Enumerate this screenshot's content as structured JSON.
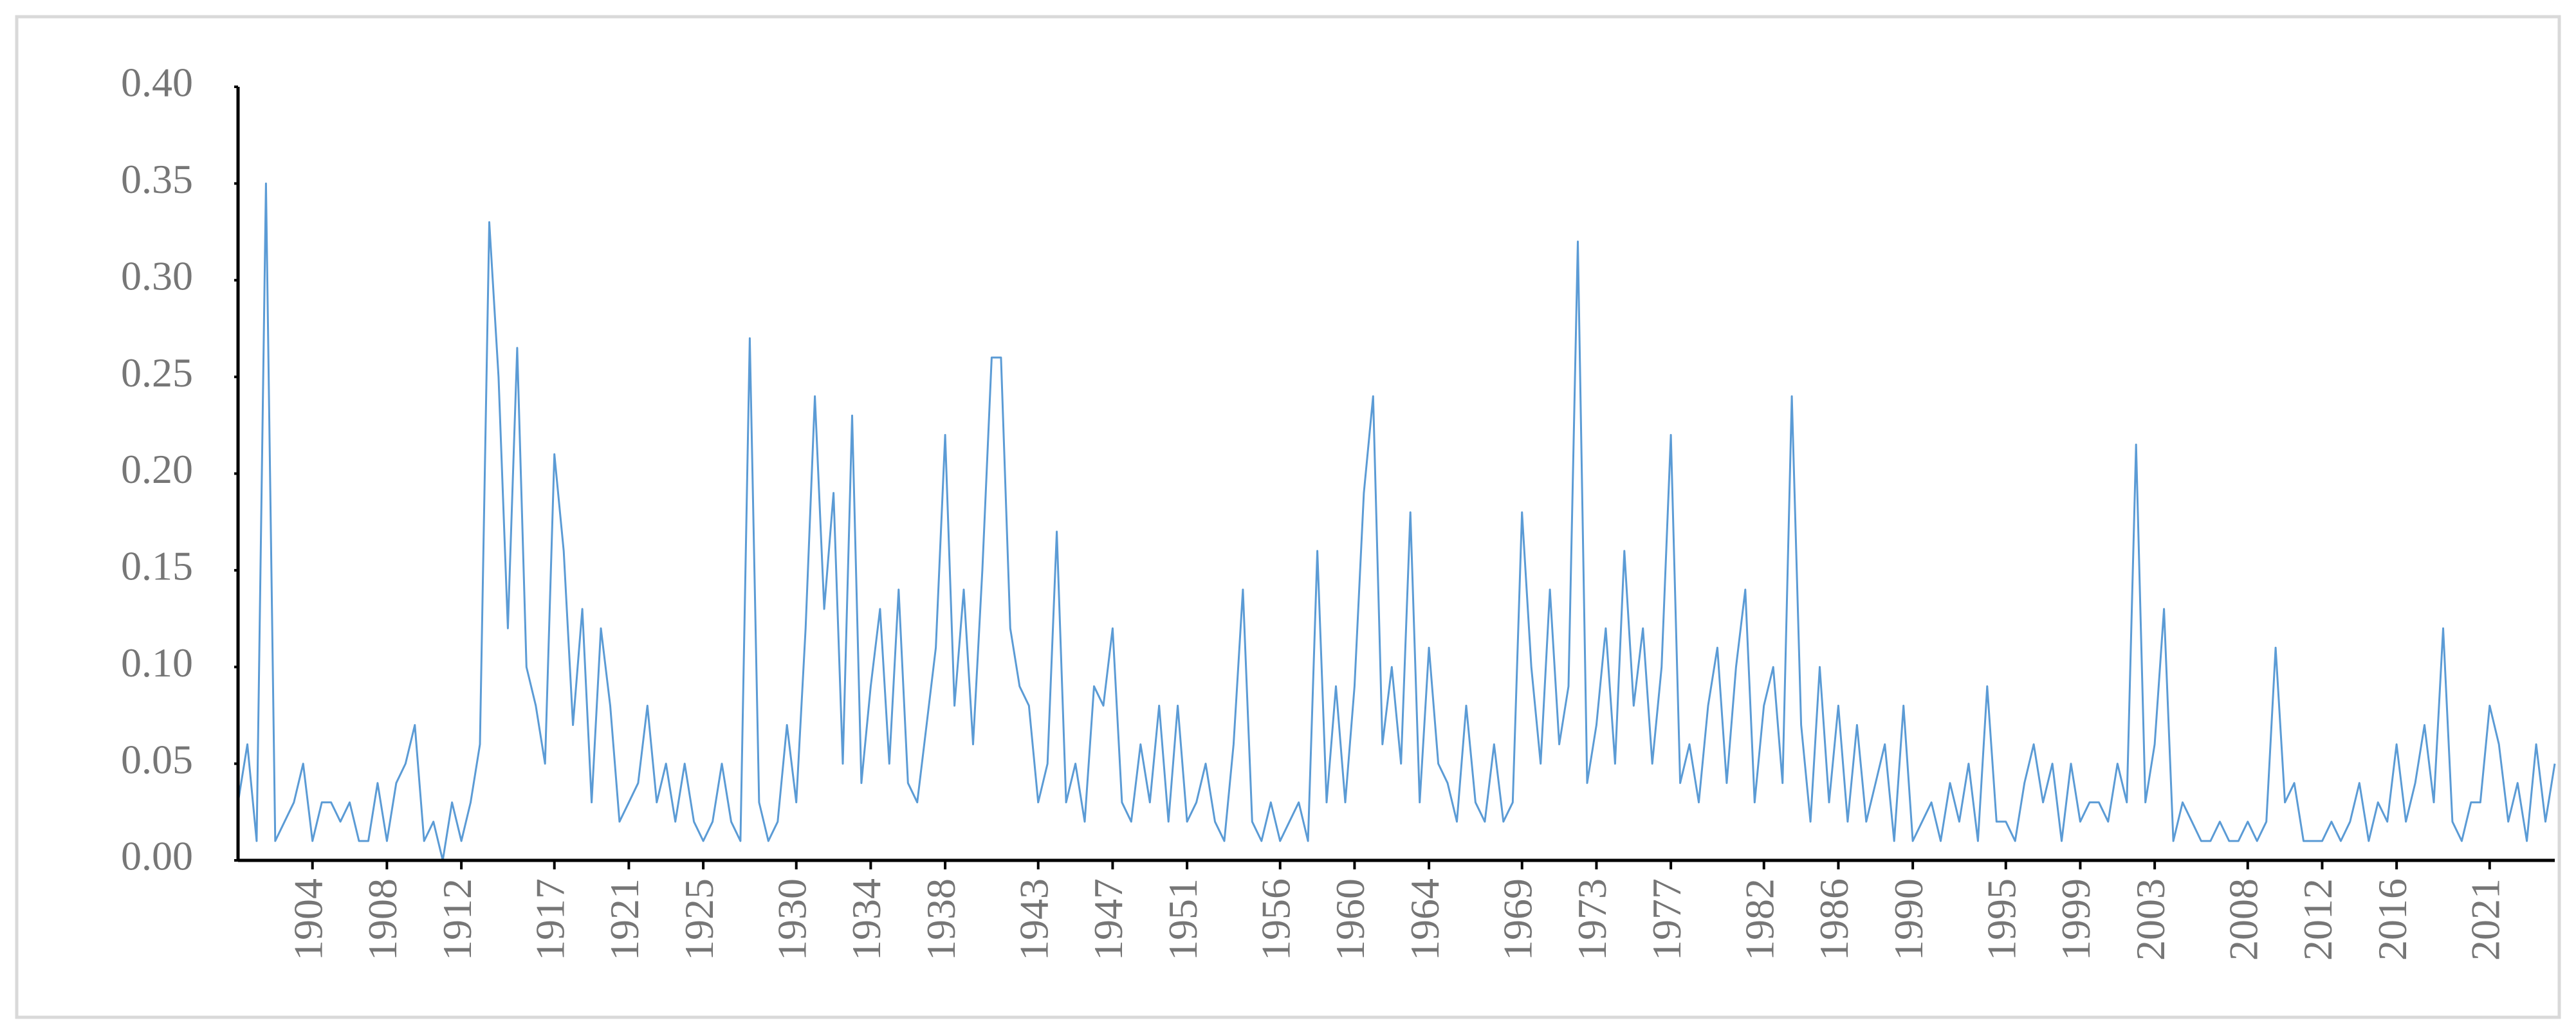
{
  "chart_data": {
    "type": "line",
    "color": "#5b9bd5",
    "xlim": [
      1900,
      2024.5
    ],
    "xticks": [
      1904,
      1908,
      1912,
      1917,
      1921,
      1925,
      1930,
      1934,
      1938,
      1943,
      1947,
      1951,
      1956,
      1960,
      1964,
      1969,
      1973,
      1977,
      1982,
      1986,
      1990,
      1995,
      1999,
      2003,
      2008,
      2012,
      2016,
      2021
    ],
    "ylim": [
      0,
      0.4
    ],
    "yticks": [
      {
        "value": 0,
        "label": "0.00"
      },
      {
        "value": 0.05,
        "label": "0.05"
      },
      {
        "value": 0.1,
        "label": "0.10"
      },
      {
        "value": 0.15,
        "label": "0.15"
      },
      {
        "value": 0.2,
        "label": "0.20"
      },
      {
        "value": 0.25,
        "label": "0.25"
      },
      {
        "value": 0.3,
        "label": "0.30"
      },
      {
        "value": 0.35,
        "label": "0.35"
      },
      {
        "value": 0.4,
        "label": "0.40"
      }
    ],
    "x": [
      1900,
      1900.5,
      1901,
      1901.5,
      1902,
      1902.5,
      1903,
      1903.5,
      1904,
      1904.5,
      1905,
      1905.5,
      1906,
      1906.5,
      1907,
      1907.5,
      1908,
      1908.5,
      1909,
      1909.5,
      1910,
      1910.5,
      1911,
      1911.5,
      1912,
      1912.5,
      1913,
      1913.5,
      1914,
      1914.5,
      1915,
      1915.5,
      1916,
      1916.5,
      1917,
      1917.5,
      1918,
      1918.5,
      1919,
      1919.5,
      1920,
      1920.5,
      1921,
      1921.5,
      1922,
      1922.5,
      1923,
      1923.5,
      1924,
      1924.5,
      1925,
      1925.5,
      1926,
      1926.5,
      1927,
      1927.5,
      1928,
      1928.5,
      1929,
      1929.5,
      1930,
      1930.5,
      1931,
      1931.5,
      1932,
      1932.5,
      1933,
      1933.5,
      1934,
      1934.5,
      1935,
      1935.5,
      1936,
      1936.5,
      1937,
      1937.5,
      1938,
      1938.5,
      1939,
      1939.5,
      1940,
      1940.5,
      1941,
      1941.5,
      1942,
      1942.5,
      1943,
      1943.5,
      1944,
      1944.5,
      1945,
      1945.5,
      1946,
      1946.5,
      1947,
      1947.5,
      1948,
      1948.5,
      1949,
      1949.5,
      1950,
      1950.5,
      1951,
      1951.5,
      1952,
      1952.5,
      1953,
      1953.5,
      1954,
      1954.5,
      1955,
      1955.5,
      1956,
      1956.5,
      1957,
      1957.5,
      1958,
      1958.5,
      1959,
      1959.5,
      1960,
      1960.5,
      1961,
      1961.5,
      1962,
      1962.5,
      1963,
      1963.5,
      1964,
      1964.5,
      1965,
      1965.5,
      1966,
      1966.5,
      1967,
      1967.5,
      1968,
      1968.5,
      1969,
      1969.5,
      1970,
      1970.5,
      1971,
      1971.5,
      1972,
      1972.5,
      1973,
      1973.5,
      1974,
      1974.5,
      1975,
      1975.5,
      1976,
      1976.5,
      1977,
      1977.5,
      1978,
      1978.5,
      1979,
      1979.5,
      1980,
      1980.5,
      1981,
      1981.5,
      1982,
      1982.5,
      1983,
      1983.5,
      1984,
      1984.5,
      1985,
      1985.5,
      1986,
      1986.5,
      1987,
      1987.5,
      1988,
      1988.5,
      1989,
      1989.5,
      1990,
      1990.5,
      1991,
      1991.5,
      1992,
      1992.5,
      1993,
      1993.5,
      1994,
      1994.5,
      1995,
      1995.5,
      1996,
      1996.5,
      1997,
      1997.5,
      1998,
      1998.5,
      1999,
      1999.5,
      2000,
      2000.5,
      2001,
      2001.5,
      2002,
      2002.5,
      2003,
      2003.5,
      2004,
      2004.5,
      2005,
      2005.5,
      2006,
      2006.5,
      2007,
      2007.5,
      2008,
      2008.5,
      2009,
      2009.5,
      2010,
      2010.5,
      2011,
      2011.5,
      2012,
      2012.5,
      2013,
      2013.5,
      2014,
      2014.5,
      2015,
      2015.5,
      2016,
      2016.5,
      2017,
      2017.5,
      2018,
      2018.5,
      2019,
      2019.5,
      2020,
      2020.5,
      2021,
      2021.5,
      2022,
      2022.5,
      2023,
      2023.5,
      2024,
      2024.5
    ],
    "values": [
      0.03,
      0.06,
      0.01,
      0.35,
      0.01,
      0.02,
      0.03,
      0.05,
      0.01,
      0.03,
      0.03,
      0.02,
      0.03,
      0.01,
      0.01,
      0.04,
      0.01,
      0.04,
      0.05,
      0.07,
      0.01,
      0.02,
      0.0,
      0.03,
      0.01,
      0.03,
      0.06,
      0.33,
      0.25,
      0.12,
      0.265,
      0.1,
      0.08,
      0.05,
      0.21,
      0.16,
      0.07,
      0.13,
      0.03,
      0.12,
      0.08,
      0.02,
      0.03,
      0.04,
      0.08,
      0.03,
      0.05,
      0.02,
      0.05,
      0.02,
      0.01,
      0.02,
      0.05,
      0.02,
      0.01,
      0.27,
      0.03,
      0.01,
      0.02,
      0.07,
      0.03,
      0.12,
      0.24,
      0.13,
      0.19,
      0.05,
      0.23,
      0.04,
      0.09,
      0.13,
      0.05,
      0.14,
      0.04,
      0.03,
      0.07,
      0.11,
      0.22,
      0.08,
      0.14,
      0.06,
      0.15,
      0.26,
      0.26,
      0.12,
      0.09,
      0.08,
      0.03,
      0.05,
      0.17,
      0.03,
      0.05,
      0.02,
      0.09,
      0.08,
      0.12,
      0.03,
      0.02,
      0.06,
      0.03,
      0.08,
      0.02,
      0.08,
      0.02,
      0.03,
      0.05,
      0.02,
      0.01,
      0.06,
      0.14,
      0.02,
      0.01,
      0.03,
      0.01,
      0.02,
      0.03,
      0.01,
      0.16,
      0.03,
      0.09,
      0.03,
      0.09,
      0.19,
      0.24,
      0.06,
      0.1,
      0.05,
      0.18,
      0.03,
      0.11,
      0.05,
      0.04,
      0.02,
      0.08,
      0.03,
      0.02,
      0.06,
      0.02,
      0.03,
      0.18,
      0.1,
      0.05,
      0.14,
      0.06,
      0.09,
      0.32,
      0.04,
      0.07,
      0.12,
      0.05,
      0.16,
      0.08,
      0.12,
      0.05,
      0.1,
      0.22,
      0.04,
      0.06,
      0.03,
      0.08,
      0.11,
      0.04,
      0.1,
      0.14,
      0.03,
      0.08,
      0.1,
      0.04,
      0.24,
      0.07,
      0.02,
      0.1,
      0.03,
      0.08,
      0.02,
      0.07,
      0.02,
      0.04,
      0.06,
      0.01,
      0.08,
      0.01,
      0.02,
      0.03,
      0.01,
      0.04,
      0.02,
      0.05,
      0.01,
      0.09,
      0.02,
      0.02,
      0.01,
      0.04,
      0.06,
      0.03,
      0.05,
      0.01,
      0.05,
      0.02,
      0.03,
      0.03,
      0.02,
      0.05,
      0.03,
      0.215,
      0.03,
      0.06,
      0.13,
      0.01,
      0.03,
      0.02,
      0.01,
      0.01,
      0.02,
      0.01,
      0.01,
      0.02,
      0.01,
      0.02,
      0.11,
      0.03,
      0.04,
      0.01,
      0.01,
      0.01,
      0.02,
      0.01,
      0.02,
      0.04,
      0.01,
      0.03,
      0.02,
      0.06,
      0.02,
      0.04,
      0.07,
      0.03,
      0.12,
      0.02,
      0.01,
      0.03,
      0.03,
      0.08,
      0.06,
      0.02,
      0.04,
      0.01,
      0.06,
      0.02,
      0.05
    ]
  }
}
